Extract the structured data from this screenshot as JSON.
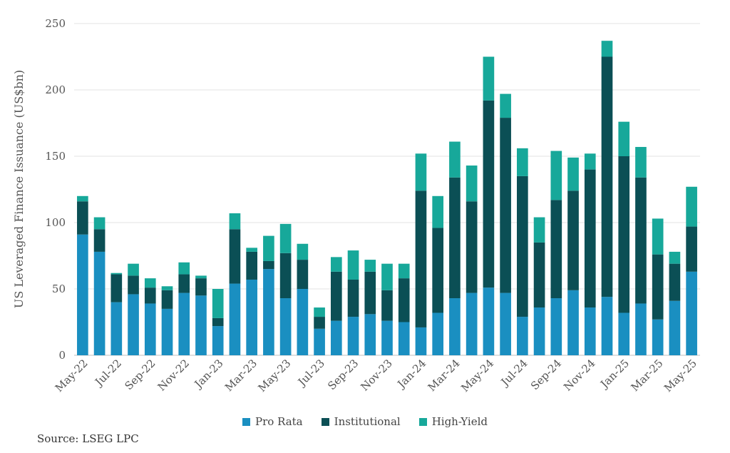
{
  "chart_data": {
    "type": "bar",
    "stacked": true,
    "title": "",
    "xlabel": "",
    "ylabel": "US Leveraged Finance Issuance (US$bn)",
    "ylim": [
      0,
      250
    ],
    "yticks": [
      0,
      50,
      100,
      150,
      200,
      250
    ],
    "grid": true,
    "legend_position": "bottom",
    "categories": [
      "May-22",
      "Jun-22",
      "Jul-22",
      "Aug-22",
      "Sep-22",
      "Oct-22",
      "Nov-22",
      "Dec-22",
      "Jan-23",
      "Feb-23",
      "Mar-23",
      "Apr-23",
      "May-23",
      "Jun-23",
      "Jul-23",
      "Aug-23",
      "Sep-23",
      "Oct-23",
      "Nov-23",
      "Dec-23",
      "Jan-24",
      "Feb-24",
      "Mar-24",
      "Apr-24",
      "May-24",
      "Jun-24",
      "Jul-24",
      "Aug-24",
      "Sep-24",
      "Oct-24",
      "Nov-24",
      "Dec-24",
      "Jan-25",
      "Feb-25",
      "Mar-25",
      "Apr-25",
      "May-25"
    ],
    "xtick_labels": [
      "May-22",
      "Jul-22",
      "Sep-22",
      "Nov-22",
      "Jan-23",
      "Mar-23",
      "May-23",
      "Jul-23",
      "Sep-23",
      "Nov-23",
      "Jan-24",
      "Mar-24",
      "May-24",
      "Jul-24",
      "Sep-24",
      "Nov-24",
      "Jan-25",
      "Mar-25",
      "May-25"
    ],
    "series": [
      {
        "name": "Pro Rata",
        "color": "#1a8fc1",
        "values": [
          91,
          78,
          40,
          46,
          39,
          35,
          47,
          45,
          22,
          54,
          57,
          65,
          43,
          50,
          20,
          26,
          29,
          31,
          26,
          25,
          21,
          32,
          43,
          47,
          51,
          47,
          29,
          36,
          43,
          49,
          36,
          44,
          32,
          39,
          27,
          41,
          63
        ]
      },
      {
        "name": "Institutional",
        "color": "#0b4f55",
        "values": [
          25,
          17,
          21,
          14,
          12,
          14,
          14,
          13,
          6,
          41,
          21,
          6,
          34,
          22,
          9,
          37,
          28,
          32,
          23,
          33,
          103,
          64,
          91,
          69,
          141,
          132,
          106,
          49,
          74,
          75,
          104,
          181,
          118,
          95,
          49,
          28,
          34
        ]
      },
      {
        "name": "High-Yield",
        "color": "#17a89a",
        "values": [
          4,
          9,
          1,
          9,
          7,
          3,
          9,
          2,
          22,
          12,
          3,
          19,
          22,
          12,
          7,
          11,
          22,
          9,
          20,
          11,
          28,
          24,
          27,
          27,
          33,
          18,
          21,
          19,
          37,
          25,
          12,
          12,
          26,
          23,
          27,
          9,
          30
        ]
      }
    ]
  },
  "source": "Source: LSEG LPC"
}
